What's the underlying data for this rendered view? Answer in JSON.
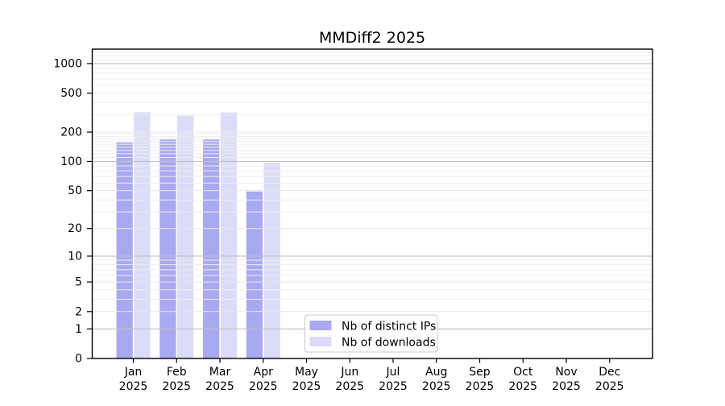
{
  "chart_data": {
    "type": "bar",
    "title": "MMDiff2 2025",
    "categories": [
      "Jan 2025",
      "Feb 2025",
      "Mar 2025",
      "Apr 2025",
      "May 2025",
      "Jun 2025",
      "Jul 2025",
      "Aug 2025",
      "Sep 2025",
      "Oct 2025",
      "Nov 2025",
      "Dec 2025"
    ],
    "series": [
      {
        "name": "Nb of distinct IPs",
        "color": "#a9a9f1",
        "values": [
          157,
          168,
          168,
          49,
          0,
          0,
          0,
          0,
          0,
          0,
          0,
          0
        ]
      },
      {
        "name": "Nb of downloads",
        "color": "#dcdcf8",
        "values": [
          320,
          295,
          318,
          97,
          0,
          0,
          0,
          0,
          0,
          0,
          0,
          0
        ]
      }
    ],
    "yscale": "log1p",
    "yticks": [
      0,
      1,
      2,
      5,
      10,
      20,
      50,
      100,
      200,
      500,
      1000
    ],
    "ylim": [
      0,
      1380
    ],
    "xlabel": "",
    "ylabel": "",
    "grid": true,
    "legend_position": "bottom-center"
  },
  "colors": {
    "background": "#ffffff",
    "axis": "#000000",
    "grid_decade": "#c0c0c0",
    "grid_minor": "#ededed",
    "legend_border": "#c8c8c8",
    "legend_background": "#ffffff"
  }
}
